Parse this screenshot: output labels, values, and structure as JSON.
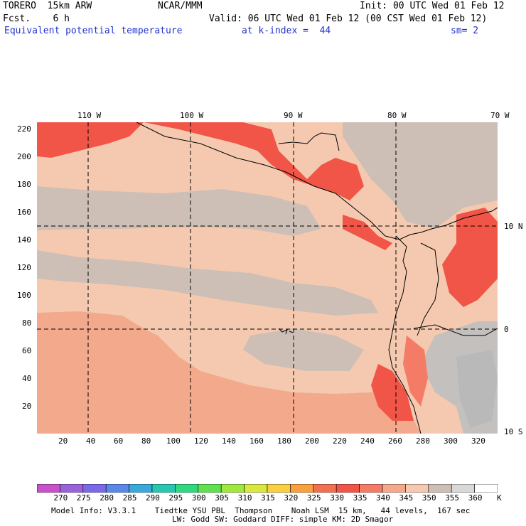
{
  "header": {
    "model": "TORERO  15km ARW",
    "org": "NCAR/MMM",
    "init": "Init: 00 UTC Wed 01 Feb 12",
    "fcst": "Fcst.    6 h",
    "valid": "Valid: 06 UTC Wed 01 Feb 12 (00 CST Wed 01 Feb 12)",
    "field": "Equivalent potential temperature",
    "level": "at k-index =  44",
    "smooth": "sm= 2"
  },
  "map": {
    "lon_labels": [
      "110 W",
      "100 W",
      "90 W",
      "80 W",
      "70 W"
    ],
    "lat_labels": [
      "10 N",
      "0",
      "10 S"
    ],
    "grid_x_labels": [
      "20",
      "40",
      "60",
      "80",
      "100",
      "120",
      "140",
      "160",
      "180",
      "200",
      "220",
      "240",
      "260",
      "280",
      "300",
      "320"
    ],
    "grid_y_labels": [
      "220",
      "200",
      "180",
      "160",
      "140",
      "120",
      "100",
      "80",
      "60",
      "40",
      "20"
    ],
    "colors": {
      "ocean_low": "#f3a98c",
      "mid": "#f5c9b0",
      "gray": "#cdbfb6",
      "hot": "#f05548",
      "hot2": "#f47c67",
      "cool": "#d9d0cc",
      "land_cool": "#b9b9b9",
      "coast": "#000000"
    }
  },
  "colorbar": {
    "labels": [
      "270",
      "275",
      "280",
      "285",
      "290",
      "295",
      "300",
      "305",
      "310",
      "315",
      "320",
      "325",
      "330",
      "335",
      "340",
      "345",
      "350",
      "355",
      "360"
    ],
    "unit": "K",
    "colors": [
      "#c850c8",
      "#9a64d8",
      "#7a6ae8",
      "#5a88e8",
      "#3aa8d8",
      "#28c8b0",
      "#30d880",
      "#60e050",
      "#a0e840",
      "#d8e840",
      "#f8d040",
      "#f8a040",
      "#f07050",
      "#f05548",
      "#f47c67",
      "#f3a98c",
      "#f5c9b0",
      "#cdbfb6",
      "#d8d8d8",
      "#ffffff"
    ]
  },
  "footer": {
    "line1": "Model Info: V3.3.1    Tiedtke YSU PBL  Thompson    Noah LSM  15 km,   44 levels,  167 sec",
    "line2": "LW: Godd SW: Goddard DIFF: simple KM: 2D Smagor"
  }
}
